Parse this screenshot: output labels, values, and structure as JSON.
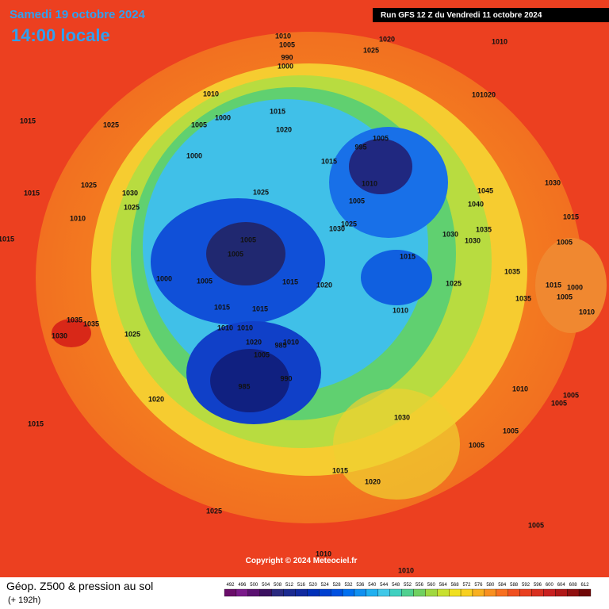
{
  "header": {
    "date": "Samedi 19 octobre 2024",
    "time": "14:00 locale",
    "run": "Run GFS 12 Z du Vendredi 11 octobre 2024"
  },
  "copyright": "Copyright © 2024 Meteociel.fr",
  "footer": {
    "title": "Géop. Z500 & pression au sol",
    "lead": "(+ 192h)"
  },
  "isobars": [
    1010,
    1005,
    990,
    1000,
    1020,
    1025,
    1010,
    1010,
    1015,
    101020,
    1015,
    1025,
    1000,
    1005,
    1020,
    1005,
    995,
    1000,
    1015,
    1025,
    1030,
    1025,
    1025,
    1015,
    1010,
    1045,
    1030,
    1010,
    1005,
    1040,
    1015,
    1030,
    1025,
    1035,
    1030,
    1005,
    1030,
    1005,
    1015,
    1005,
    1015,
    1035,
    1000,
    1005,
    1015,
    1020,
    1025,
    1015,
    1000,
    1005,
    1035,
    1015,
    1015,
    1010,
    1010,
    1035,
    1035,
    1010,
    1010,
    1030,
    1025,
    1020,
    985,
    1010,
    1005,
    990,
    985,
    1020,
    1010,
    1005,
    1005,
    1030,
    1015,
    1005,
    1005,
    1015,
    1020,
    1025,
    1005,
    1010,
    1010
  ],
  "legend": {
    "values": [
      492,
      496,
      500,
      504,
      508,
      512,
      516,
      520,
      524,
      528,
      532,
      536,
      540,
      544,
      548,
      552,
      556,
      560,
      564,
      568,
      572,
      576,
      580,
      584,
      588,
      592,
      596,
      600,
      604,
      608,
      612
    ],
    "colors": [
      "#6a0d6a",
      "#7a1a8a",
      "#5a1070",
      "#3a1060",
      "#2a2a80",
      "#1a2a90",
      "#102aa0",
      "#0030b8",
      "#0040d0",
      "#0050e0",
      "#0070f0",
      "#1090f0",
      "#20b0f0",
      "#40c8e8",
      "#40d0c0",
      "#50d090",
      "#70d060",
      "#a0d840",
      "#c8e030",
      "#f0e020",
      "#f8d020",
      "#f8b020",
      "#f89020",
      "#f87020",
      "#f05020",
      "#e84020",
      "#d83020",
      "#c82020",
      "#b01818",
      "#901010",
      "#700808"
    ]
  }
}
